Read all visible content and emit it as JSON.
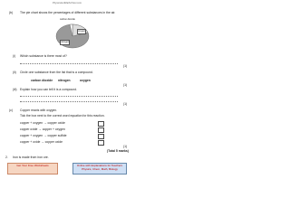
{
  "header": {
    "site": "PhysicsAndMathsTutor.com"
  },
  "part_b": {
    "label": "(b)",
    "intro": "The pie chart shows the percentages of different substances in the air.",
    "pie_labels": [
      "carbon dioxide",
      "oxygen",
      "nitrogen"
    ],
    "questions": [
      {
        "number": "(i)",
        "text": "Which substance is there most of?",
        "marks": "(1)"
      },
      {
        "number": "(ii)",
        "text": "Circle one substance from the list that is a compound.",
        "options": [
          "carbon dioxide",
          "nitrogen",
          "oxygen"
        ],
        "marks": "(1)"
      },
      {
        "number": "(iii)",
        "text": "Explain how you can tell it is a compound.",
        "marks": "(1)"
      }
    ]
  },
  "part_c": {
    "label": "(c)",
    "text": "Copper reacts with oxygen.",
    "instruction": "Tick the box next to the correct word equation for this reaction.",
    "options": [
      "copper + oxygen → copper oxide",
      "copper oxide → copper + oxygen",
      "copper + oxygen → copper sulfide",
      "copper + oxide → copper oxide"
    ],
    "marks": "(1)"
  },
  "total": "(Total 5 marks)",
  "question_2": {
    "number": "2.",
    "text": "Iron is made from iron ore."
  },
  "footer": {
    "left": "Get Your Free Worksheets",
    "right": "Online with Explanations for Teachers Physics, Chem, Math, Biology"
  }
}
